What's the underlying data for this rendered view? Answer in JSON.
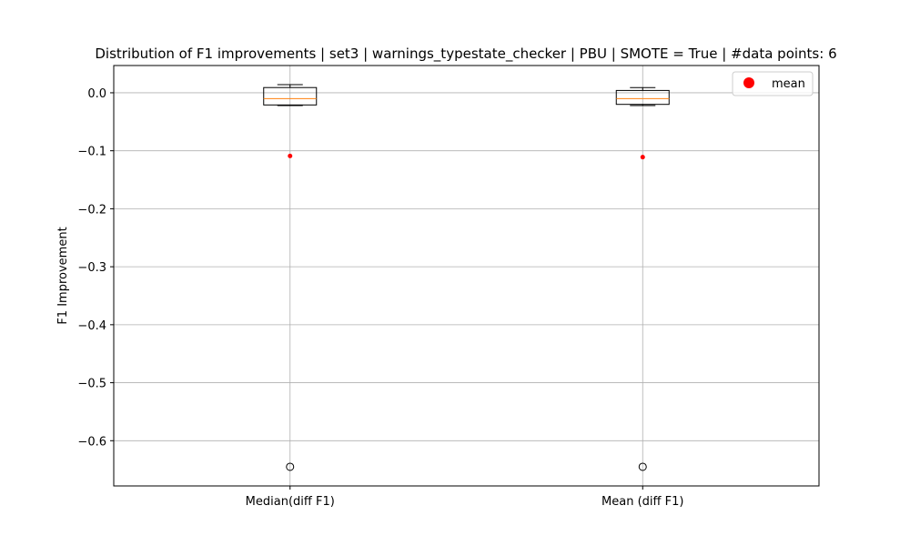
{
  "chart_data": {
    "type": "box",
    "title": "Distribution of F1 improvements | set3 | warnings_typestate_checker | PBU | SMOTE = True | #data points: 6",
    "xlabel": "",
    "ylabel": "F1 Improvement",
    "ylim": [
      -0.678,
      0.047
    ],
    "yticks": [
      0.0,
      -0.1,
      -0.2,
      -0.3,
      -0.4,
      -0.5,
      -0.6
    ],
    "ytick_labels": [
      "0.0",
      "−0.1",
      "−0.2",
      "−0.3",
      "−0.4",
      "−0.5",
      "−0.6"
    ],
    "grid": true,
    "legend": {
      "label": "mean",
      "location": "top-right"
    },
    "categories": [
      "Median(diff F1)",
      "Mean (diff F1)"
    ],
    "boxes": [
      {
        "name": "Median(diff F1)",
        "whisker_low": -0.022,
        "q1": -0.021,
        "median": -0.01,
        "q3": 0.009,
        "whisker_high": 0.014,
        "mean": -0.109,
        "outliers": [
          -0.645
        ]
      },
      {
        "name": "Mean (diff F1)",
        "whisker_low": -0.022,
        "q1": -0.02,
        "median": -0.01,
        "q3": 0.004,
        "whisker_high": 0.009,
        "mean": -0.111,
        "outliers": [
          -0.645
        ]
      }
    ],
    "colors": {
      "box": "#000000",
      "median": "#ff7f0e",
      "mean": "#ff0000",
      "grid": "#b0b0b0"
    }
  }
}
